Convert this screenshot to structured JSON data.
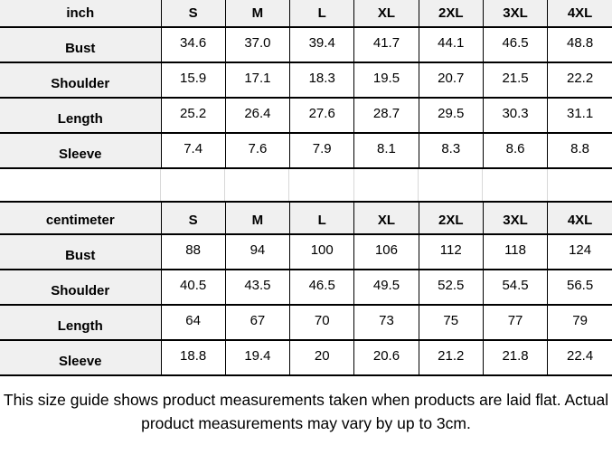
{
  "colors": {
    "header_background": "#f0f0f0",
    "cell_background": "#ffffff",
    "table_border": "#000000",
    "spacer_line": "#d8d8d8",
    "text": "#000000"
  },
  "tables": [
    {
      "unit_label": "inch",
      "sizes": [
        "S",
        "M",
        "L",
        "XL",
        "2XL",
        "3XL",
        "4XL"
      ],
      "rows": [
        {
          "label": "Bust",
          "values": [
            "34.6",
            "37.0",
            "39.4",
            "41.7",
            "44.1",
            "46.5",
            "48.8"
          ]
        },
        {
          "label": "Shoulder",
          "values": [
            "15.9",
            "17.1",
            "18.3",
            "19.5",
            "20.7",
            "21.5",
            "22.2"
          ]
        },
        {
          "label": "Length",
          "values": [
            "25.2",
            "26.4",
            "27.6",
            "28.7",
            "29.5",
            "30.3",
            "31.1"
          ]
        },
        {
          "label": "Sleeve",
          "values": [
            "7.4",
            "7.6",
            "7.9",
            "8.1",
            "8.3",
            "8.6",
            "8.8"
          ]
        }
      ]
    },
    {
      "unit_label": "centimeter",
      "sizes": [
        "S",
        "M",
        "L",
        "XL",
        "2XL",
        "3XL",
        "4XL"
      ],
      "rows": [
        {
          "label": "Bust",
          "values": [
            "88",
            "94",
            "100",
            "106",
            "112",
            "118",
            "124"
          ]
        },
        {
          "label": "Shoulder",
          "values": [
            "40.5",
            "43.5",
            "46.5",
            "49.5",
            "52.5",
            "54.5",
            "56.5"
          ]
        },
        {
          "label": "Length",
          "values": [
            "64",
            "67",
            "70",
            "73",
            "75",
            "77",
            "79"
          ]
        },
        {
          "label": "Sleeve",
          "values": [
            "18.8",
            "19.4",
            "20",
            "20.6",
            "21.2",
            "21.8",
            "22.4"
          ]
        }
      ]
    }
  ],
  "footer": {
    "lines": [
      "This size guide shows product measurements taken when products are laid flat. Actual",
      "product measurements may vary by up to 3cm."
    ]
  }
}
